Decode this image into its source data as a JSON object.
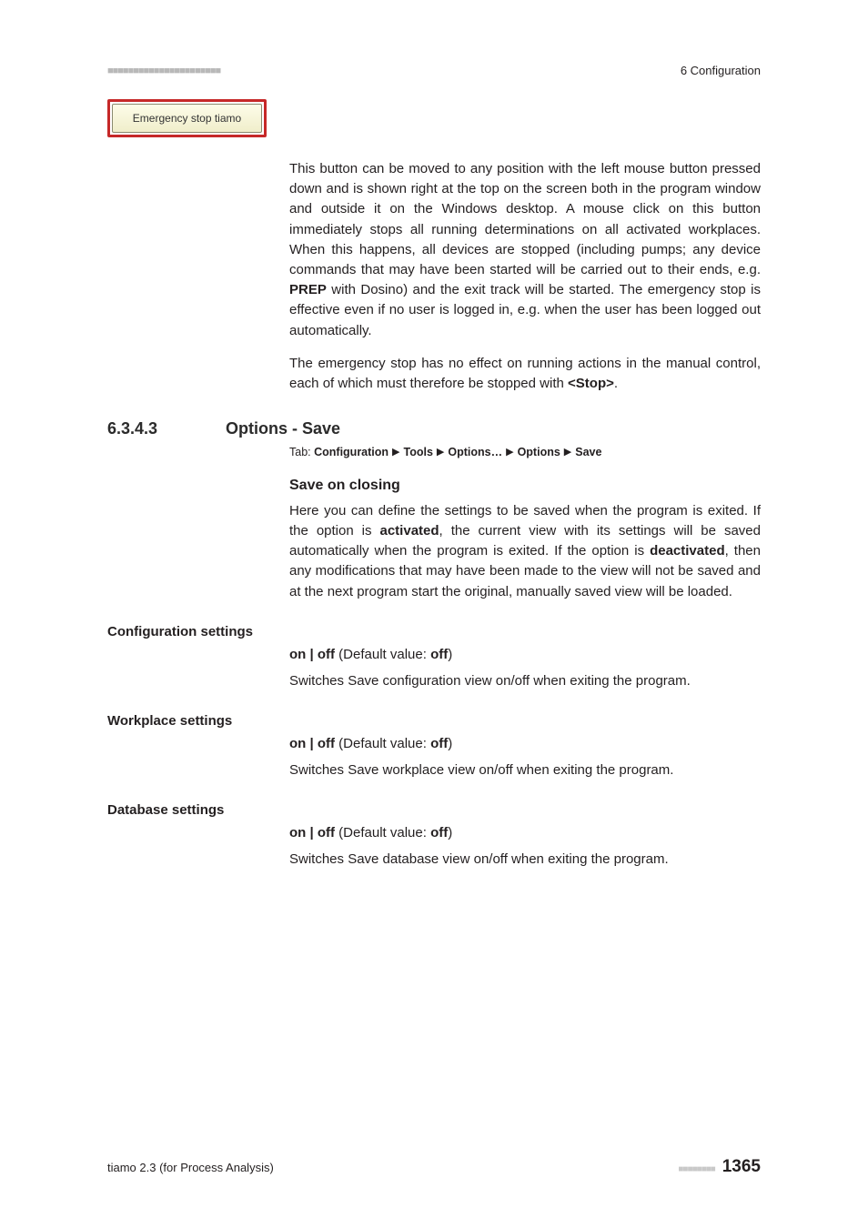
{
  "header": {
    "dashes_left": "■■■■■■■■■■■■■■■■■■■■■■",
    "chapter": "6 Configuration"
  },
  "estop": {
    "label": "Emergency stop tiamo"
  },
  "paras": {
    "p1_a": "This button can be moved to any position with the left mouse button pressed down and is shown right at the top on the screen both in the program window and outside it on the Windows desktop. A mouse click on this button immediately stops all running determinations on all activated workplaces. When this happens, all devices are stopped (including pumps; any device commands that may have been started will be carried out to their ends, e.g. ",
    "p1_prep": "PREP",
    "p1_b": " with Dosino) and the exit track will be started. The emergency stop is effective even if no user is logged in, e.g. when the user has been logged out automatically.",
    "p2_a": "The emergency stop has no effect on running actions in the manual control, each of which must therefore be stopped with ",
    "p2_stop": "<Stop>",
    "p2_b": "."
  },
  "section": {
    "num": "6.3.4.3",
    "title": "Options - Save"
  },
  "tabline": {
    "prefix": "Tab: ",
    "t1": "Configuration",
    "t2": "Tools",
    "t3": "Options…",
    "t4": "Options",
    "t5": "Save"
  },
  "save_on_closing": {
    "heading": "Save on closing",
    "body_a": "Here you can define the settings to be saved when the program is exited. If the option is ",
    "body_b": "activated",
    "body_c": ", the current view with its settings will be saved automatically when the program is exited. If the option is ",
    "body_d": "deactivated",
    "body_e": ", then any modifications that may have been made to the view will not be saved and at the next program start the original, manually saved view will be loaded."
  },
  "groups": {
    "cfg": {
      "title": "Configuration settings",
      "onoff_a": "on | off",
      "onoff_b": " (Default value: ",
      "onoff_c": "off",
      "onoff_d": ")",
      "desc": "Switches Save configuration view on/off when exiting the program."
    },
    "wp": {
      "title": "Workplace settings",
      "onoff_a": "on | off",
      "onoff_b": " (Default value: ",
      "onoff_c": "off",
      "onoff_d": ")",
      "desc": "Switches Save workplace view on/off when exiting the program."
    },
    "db": {
      "title": "Database settings",
      "onoff_a": "on | off",
      "onoff_b": " (Default value: ",
      "onoff_c": "off",
      "onoff_d": ")",
      "desc": "Switches Save database view on/off when exiting the program."
    }
  },
  "footer": {
    "left": "tiamo 2.3 (for Process Analysis)",
    "dashes": "■■■■■■■■",
    "page": "1365"
  }
}
